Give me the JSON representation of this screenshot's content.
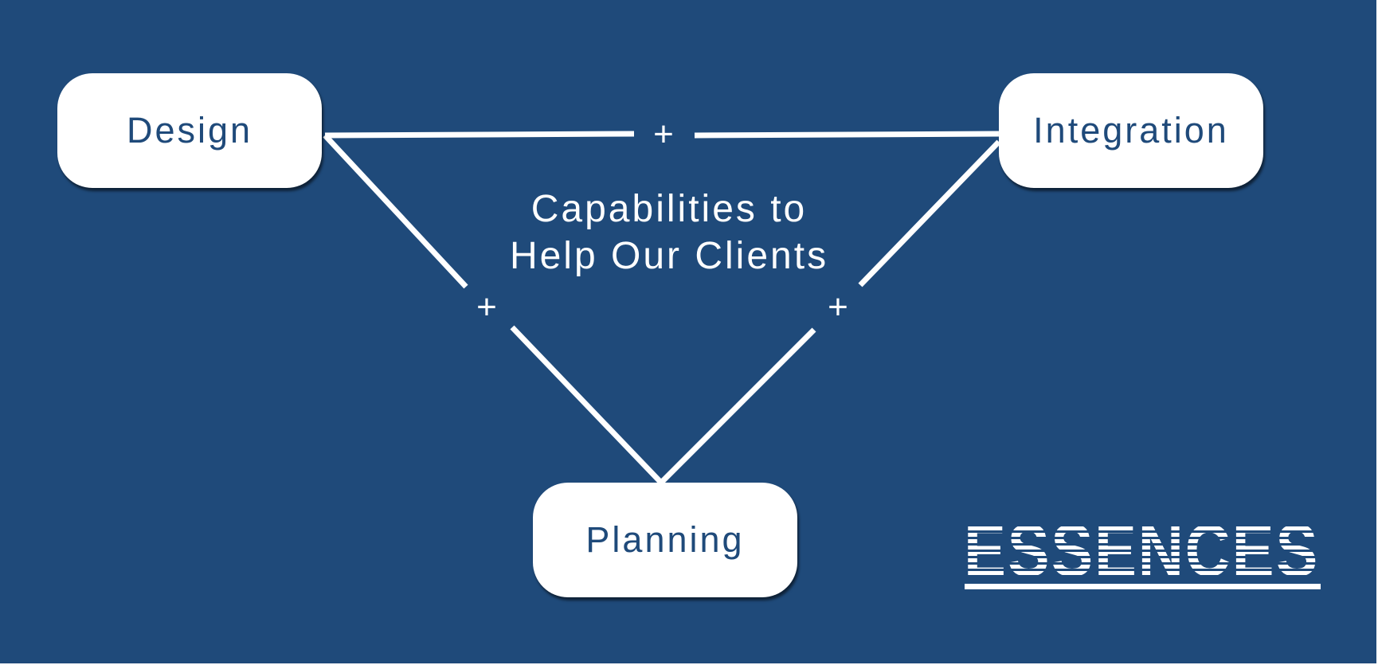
{
  "diagram": {
    "center_title": {
      "line1": "Capabilities to",
      "line2": "Help Our Clients"
    },
    "nodes": {
      "design": "Design",
      "integration": "Integration",
      "planning": "Planning"
    },
    "connector_symbol": "+",
    "logo_text": "ESSENCES"
  },
  "colors": {
    "background": "#1f4a7a",
    "node_fill": "#ffffff",
    "node_text": "#1f4a7a",
    "line": "#ffffff"
  },
  "icons": {
    "plus": "plus-icon"
  }
}
